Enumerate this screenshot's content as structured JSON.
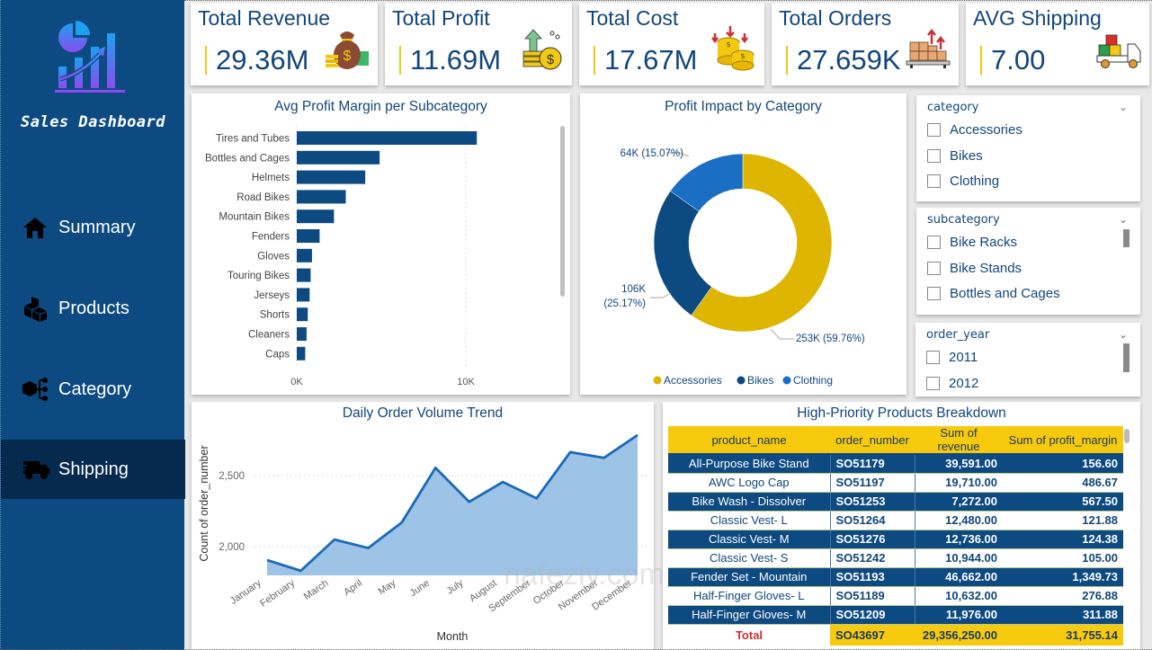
{
  "sidebar": {
    "brand": "Sales Dashboard",
    "nav": [
      {
        "label": "Summary",
        "icon": "home-icon",
        "active": false
      },
      {
        "label": "Products",
        "icon": "boxes-icon",
        "active": false
      },
      {
        "label": "Category",
        "icon": "category-tree-icon",
        "active": false
      },
      {
        "label": "Shipping",
        "icon": "truck-icon",
        "active": true
      }
    ]
  },
  "kpis": [
    {
      "title": "Total Revenue",
      "value": "29.36M",
      "icon": "money-bag-icon"
    },
    {
      "title": "Total Profit",
      "value": "11.69M",
      "icon": "coins-up-icon"
    },
    {
      "title": "Total Cost",
      "value": "17.67M",
      "icon": "coins-down-icon"
    },
    {
      "title": "Total Orders",
      "value": "27.659K",
      "icon": "boxes-pallet-icon"
    },
    {
      "title": "AVG Shipping",
      "value": "7.00",
      "icon": "delivery-truck-icon"
    }
  ],
  "colors": {
    "primary": "#0d4a82",
    "accent": "#f2c811",
    "donut_accessories": "#deb500",
    "donut_bikes": "#0d4a82",
    "donut_clothing": "#1a6fc4",
    "area_fill": "#9dc3e6",
    "area_line": "#1a6ab8"
  },
  "slicers": {
    "category": {
      "title": "category",
      "items": [
        "Accessories",
        "Bikes",
        "Clothing"
      ]
    },
    "subcategory": {
      "title": "subcategory",
      "items": [
        "Bike Racks",
        "Bike Stands",
        "Bottles and Cages"
      ]
    },
    "order_year": {
      "title": "order_year",
      "items": [
        "2011",
        "2012"
      ]
    }
  },
  "table": {
    "title": "High-Priority Products Breakdown",
    "columns": [
      "product_name",
      "order_number",
      "Sum of revenue",
      "Sum of profit_margin"
    ],
    "rows": [
      [
        "All-Purpose Bike Stand",
        "SO51179",
        "39,591.00",
        "156.60"
      ],
      [
        "AWC Logo Cap",
        "SO51197",
        "19,710.00",
        "486.67"
      ],
      [
        "Bike Wash - Dissolver",
        "SO51253",
        "7,272.00",
        "567.50"
      ],
      [
        "Classic Vest- L",
        "SO51264",
        "12,480.00",
        "121.88"
      ],
      [
        "Classic Vest- M",
        "SO51276",
        "12,736.00",
        "124.38"
      ],
      [
        "Classic Vest- S",
        "SO51242",
        "10,944.00",
        "105.00"
      ],
      [
        "Fender Set - Mountain",
        "SO51193",
        "46,662.00",
        "1,349.73"
      ],
      [
        "Half-Finger Gloves- L",
        "SO51189",
        "10,632.00",
        "276.88"
      ],
      [
        "Half-Finger Gloves- M",
        "SO51209",
        "11,976.00",
        "311.88"
      ]
    ],
    "total": {
      "label": "Total",
      "order_number": "SO43697",
      "revenue": "29,356,250.00",
      "profit_margin": "31,755.14"
    }
  },
  "watermark": "nafezly.com",
  "chart_data": [
    {
      "type": "bar",
      "orientation": "horizontal",
      "title": "Avg Profit Margin per Subcategory",
      "categories": [
        "Tires and Tubes",
        "Bottles and Cages",
        "Helmets",
        "Road Bikes",
        "Mountain Bikes",
        "Fenders",
        "Gloves",
        "Touring Bikes",
        "Jerseys",
        "Shorts",
        "Cleaners",
        "Caps"
      ],
      "values": [
        10650,
        4900,
        4050,
        2900,
        2200,
        1350,
        900,
        820,
        760,
        650,
        580,
        500
      ],
      "xlabel": "",
      "ylabel": "",
      "xlim": [
        0,
        12000
      ],
      "xticks": [
        "0K",
        "10K"
      ],
      "grid": true
    },
    {
      "type": "pie",
      "donut": true,
      "title": "Profit Impact by Category",
      "categories": [
        "Accessories",
        "Bikes",
        "Clothing"
      ],
      "values": [
        253000,
        106000,
        64000
      ],
      "percents": [
        59.76,
        25.17,
        15.07
      ],
      "labels": [
        "253K (59.76%)",
        "106K (25.17%)",
        "64K (15.07%)"
      ],
      "legend": "bottom"
    },
    {
      "type": "area",
      "title": "Daily Order Volume Trend",
      "x": [
        "January",
        "February",
        "March",
        "April",
        "May",
        "June",
        "July",
        "August",
        "September",
        "October",
        "November",
        "December"
      ],
      "values": [
        1905,
        1830,
        2050,
        1990,
        2170,
        2555,
        2315,
        2455,
        2340,
        2665,
        2625,
        2785
      ],
      "xlabel": "Month",
      "ylabel": "Count of order_number",
      "ylim": [
        1800,
        2850
      ],
      "yticks": [
        "2,000",
        "2,500"
      ],
      "grid": true
    }
  ]
}
